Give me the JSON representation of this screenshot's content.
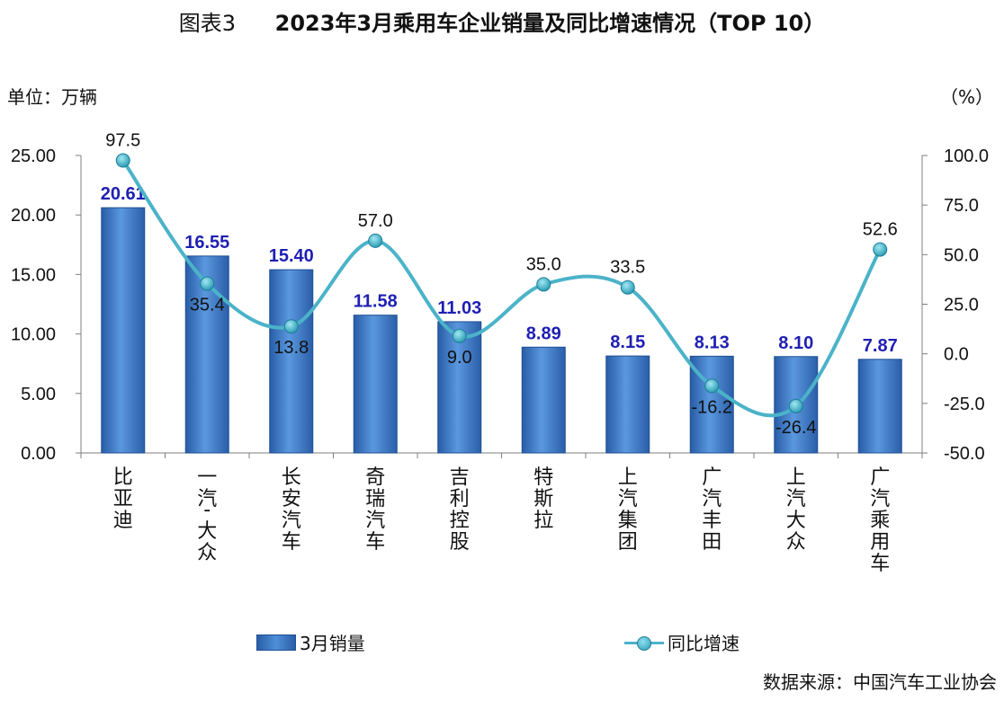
{
  "header": {
    "figure_no": "图表3",
    "title": "2023年3月乘用车企业销量及同比增速情况（TOP 10）"
  },
  "units": {
    "left": "单位：万辆",
    "right": "（%）"
  },
  "source": "数据来源：中国汽车工业协会",
  "colors": {
    "bar": "#3a73c4",
    "bar_label": "#1f1fb3",
    "line": "#4bb3c9",
    "marker": "#2b9cb6"
  },
  "chart_data": {
    "type": "bar",
    "categories": [
      "比亚迪",
      "一汽-大众",
      "长安汽车",
      "奇瑞汽车",
      "吉利控股",
      "特斯拉",
      "上汽集团",
      "广汽丰田",
      "上汽大众",
      "广汽乘用车"
    ],
    "series": [
      {
        "name": "3月销量",
        "type": "bar",
        "axis": "left",
        "values": [
          20.61,
          16.55,
          15.4,
          11.58,
          11.03,
          8.89,
          8.15,
          8.13,
          8.1,
          7.87
        ],
        "labels": [
          "20.61",
          "16.55",
          "15.40",
          "11.58",
          "11.03",
          "8.89",
          "8.15",
          "8.13",
          "8.10",
          "7.87"
        ]
      },
      {
        "name": "同比增速",
        "type": "line",
        "axis": "right",
        "values": [
          97.5,
          35.4,
          13.8,
          57.0,
          9.0,
          35.0,
          33.5,
          -16.2,
          -26.4,
          52.6
        ],
        "labels": [
          "97.5",
          "35.4",
          "13.8",
          "57.0",
          "9.0",
          "35.0",
          "33.5",
          "-16.2",
          "-26.4",
          "52.6"
        ],
        "label_side": [
          "above",
          "below",
          "below",
          "above",
          "below",
          "above",
          "above",
          "below",
          "below",
          "above"
        ]
      }
    ],
    "ylim_left": [
      0,
      25
    ],
    "yticks_left": [
      "0.00",
      "5.00",
      "10.00",
      "15.00",
      "20.00",
      "25.00"
    ],
    "ylim_right": [
      -50,
      100
    ],
    "yticks_right": [
      "-50.0",
      "-25.0",
      "0.0",
      "25.0",
      "50.0",
      "75.0",
      "100.0"
    ],
    "legend": {
      "position": "bottom",
      "items": [
        "3月销量",
        "同比增速"
      ]
    },
    "grid": false
  }
}
